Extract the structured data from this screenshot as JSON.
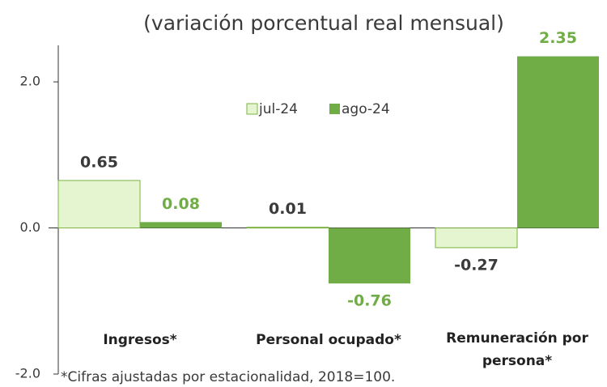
{
  "chart_data": {
    "type": "bar",
    "title": "(variación porcentual real mensual)",
    "categories": [
      "Ingresos*",
      "Personal ocupado*",
      "Remuneración por persona*"
    ],
    "series": [
      {
        "name": "jul-24",
        "color": "#e4f5cf",
        "label_color": "#3a3a3a",
        "values": [
          0.65,
          0.01,
          -0.27
        ]
      },
      {
        "name": "ago-24",
        "color": "#70ad47",
        "label_color": "#70ad47",
        "values": [
          0.08,
          -0.76,
          2.35
        ]
      }
    ],
    "ylim": [
      -2,
      2.5
    ],
    "yticks": [
      {
        "value": -2,
        "label": "-2.0"
      },
      {
        "value": 0,
        "label": "0.0"
      },
      {
        "value": 2,
        "label": "2.0"
      }
    ],
    "legend": "top-center",
    "footnote": "*Cifras ajustadas por estacionalidad, 2018=100."
  }
}
